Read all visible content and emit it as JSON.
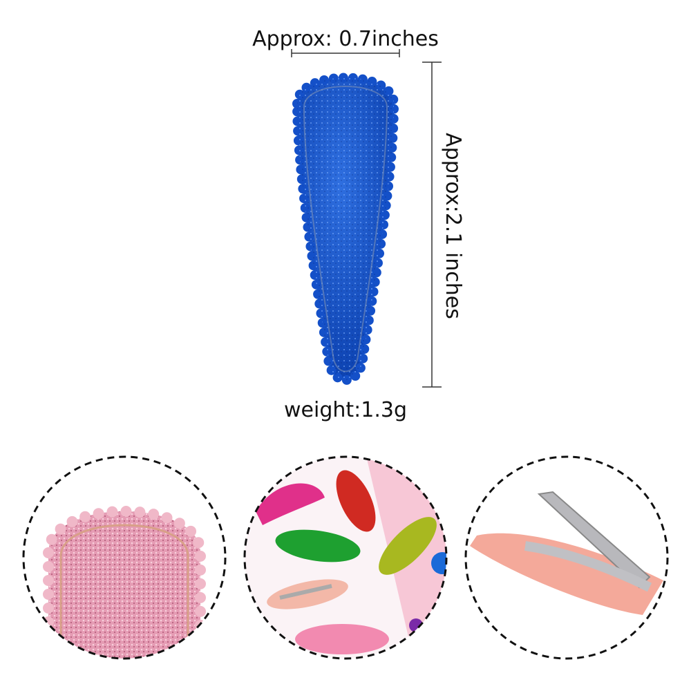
{
  "labels": {
    "width": "Approx: 0.7inches",
    "height": "Approx:2.1 inches",
    "weight": "weight:1.3g"
  }
}
